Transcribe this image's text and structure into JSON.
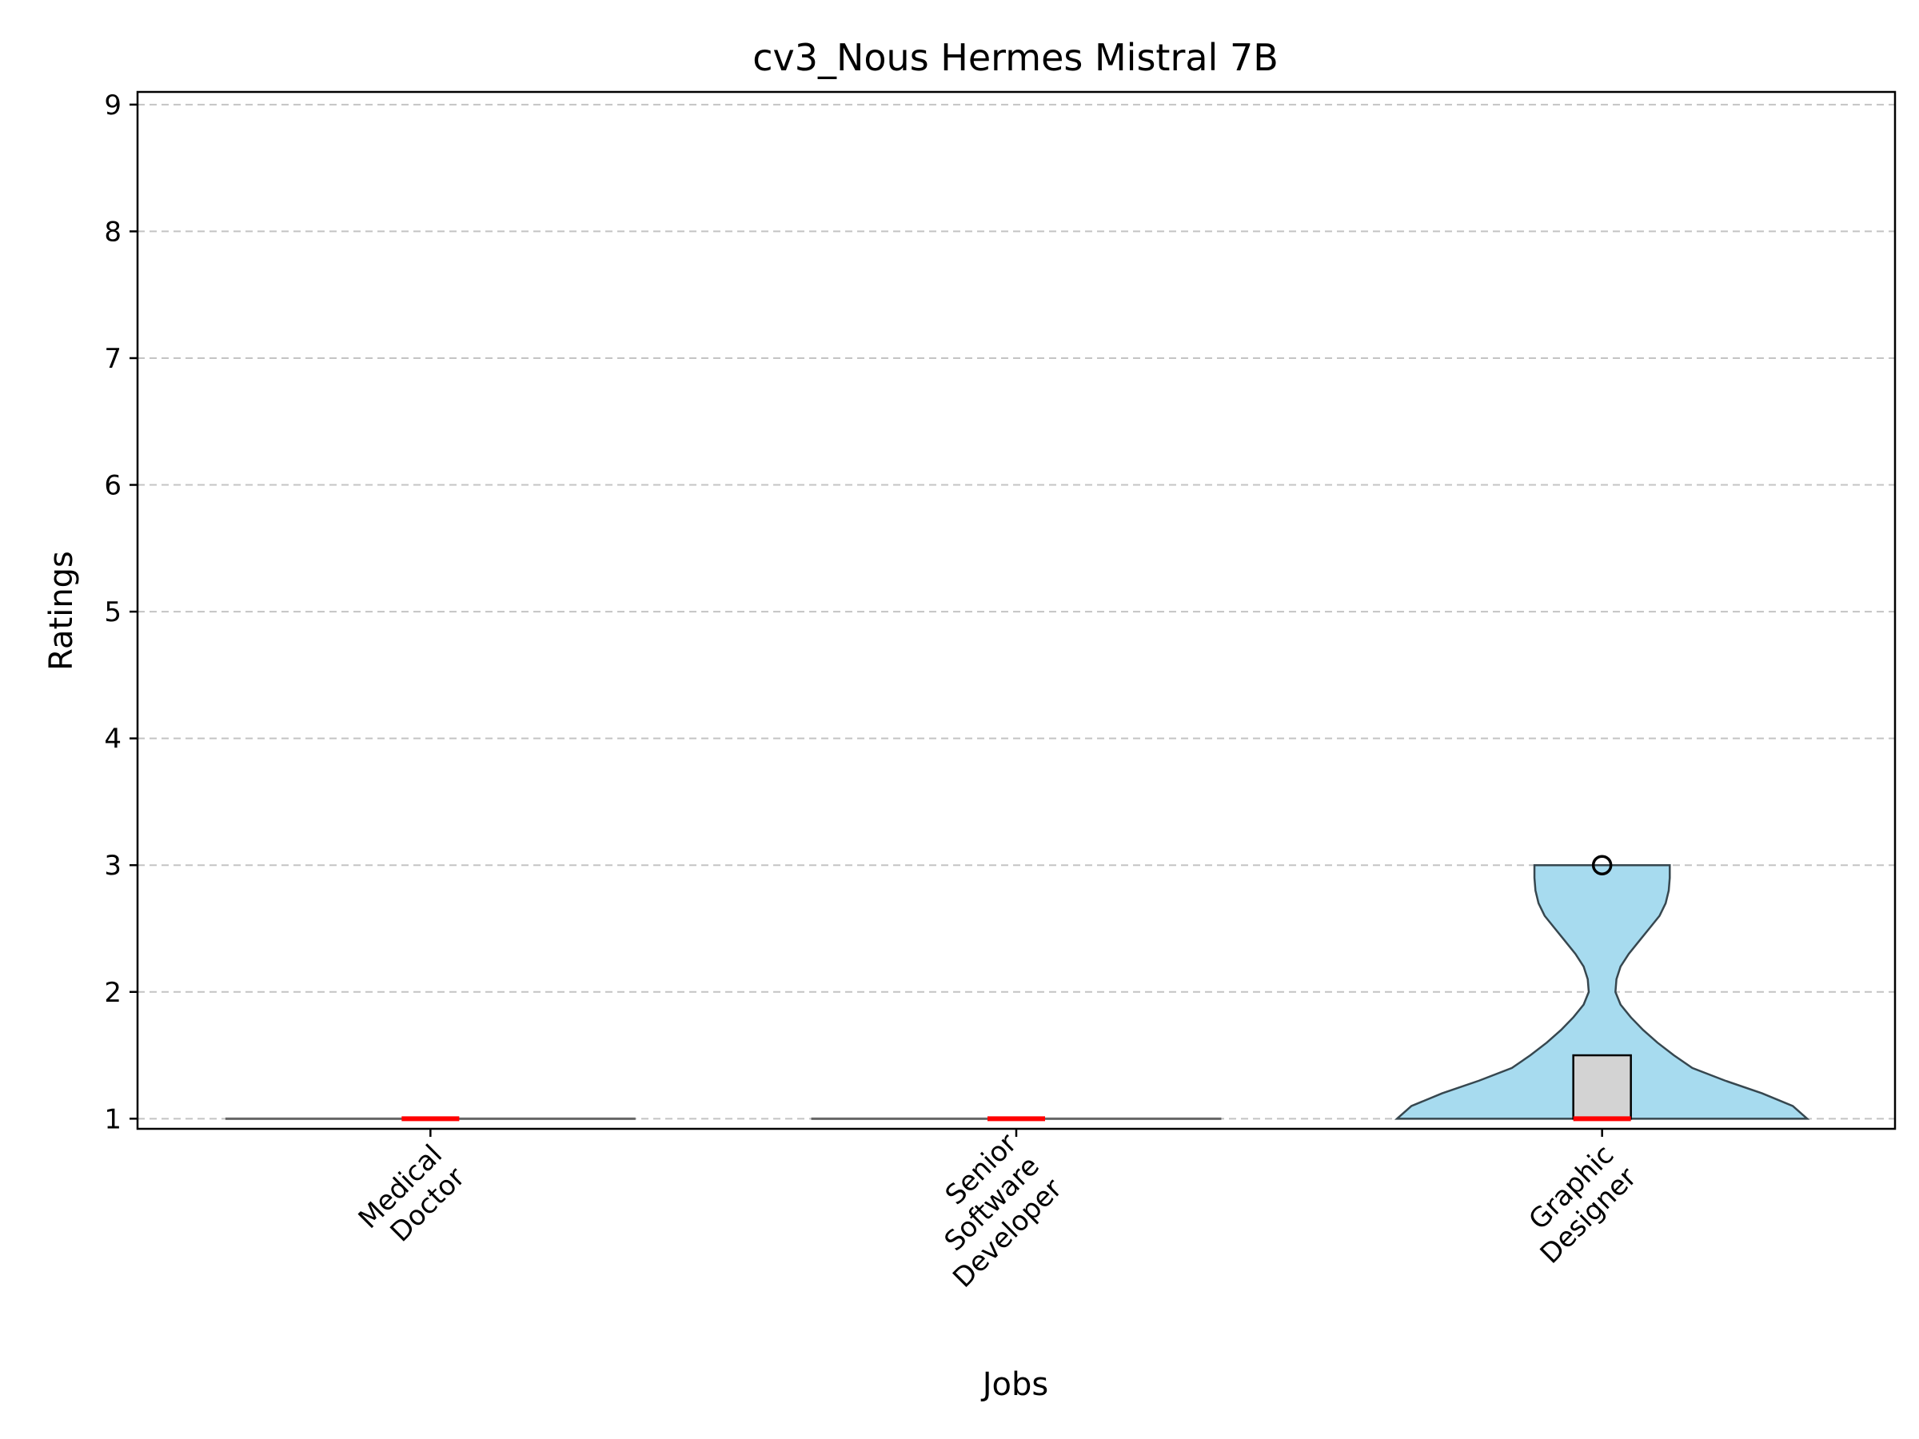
{
  "chart_data": {
    "type": "violin",
    "title": "cv3_Nous Hermes Mistral 7B",
    "xlabel": "Jobs",
    "ylabel": "Ratings",
    "ylim": [
      0.92,
      9.1
    ],
    "yticks": [
      "1",
      "2",
      "3",
      "4",
      "5",
      "6",
      "7",
      "8",
      "9"
    ],
    "grid": "y-dashed",
    "categories": [
      {
        "label": [
          "Medical",
          "Doctor"
        ]
      },
      {
        "label": [
          "Senior",
          "Software",
          "Developer"
        ]
      },
      {
        "label": [
          "Graphic",
          "Designer"
        ]
      }
    ],
    "series": [
      {
        "category": "Medical Doctor",
        "min": 1,
        "q1": 1,
        "median": 1,
        "q3": 1,
        "max": 1,
        "outliers": [],
        "density": [
          [
            1,
            1.0
          ]
        ]
      },
      {
        "category": "Senior Software Developer",
        "min": 1,
        "q1": 1,
        "median": 1,
        "q3": 1,
        "max": 1,
        "outliers": [],
        "density": [
          [
            1,
            1.0
          ]
        ]
      },
      {
        "category": "Graphic Designer",
        "min": 1,
        "q1": 1,
        "median": 1,
        "q3": 1.5,
        "max": 1.5,
        "outliers": [
          3
        ],
        "density": [
          [
            1.0,
            1.0
          ],
          [
            1.1,
            0.93
          ],
          [
            1.2,
            0.78
          ],
          [
            1.3,
            0.6
          ],
          [
            1.4,
            0.44
          ],
          [
            1.5,
            0.35
          ],
          [
            1.6,
            0.27
          ],
          [
            1.7,
            0.2
          ],
          [
            1.8,
            0.14
          ],
          [
            1.9,
            0.09
          ],
          [
            2.0,
            0.065
          ],
          [
            2.1,
            0.07
          ],
          [
            2.2,
            0.09
          ],
          [
            2.3,
            0.13
          ],
          [
            2.4,
            0.18
          ],
          [
            2.5,
            0.23
          ],
          [
            2.6,
            0.28
          ],
          [
            2.7,
            0.31
          ],
          [
            2.8,
            0.325
          ],
          [
            2.9,
            0.33
          ],
          [
            3.0,
            0.33
          ]
        ]
      }
    ],
    "colors": {
      "violin_fill": "#a7dbef",
      "violin_edge": "#37474f",
      "box_fill": "#d3d3d3",
      "median": "#ff0000",
      "grid": "#c4c4c4"
    }
  }
}
